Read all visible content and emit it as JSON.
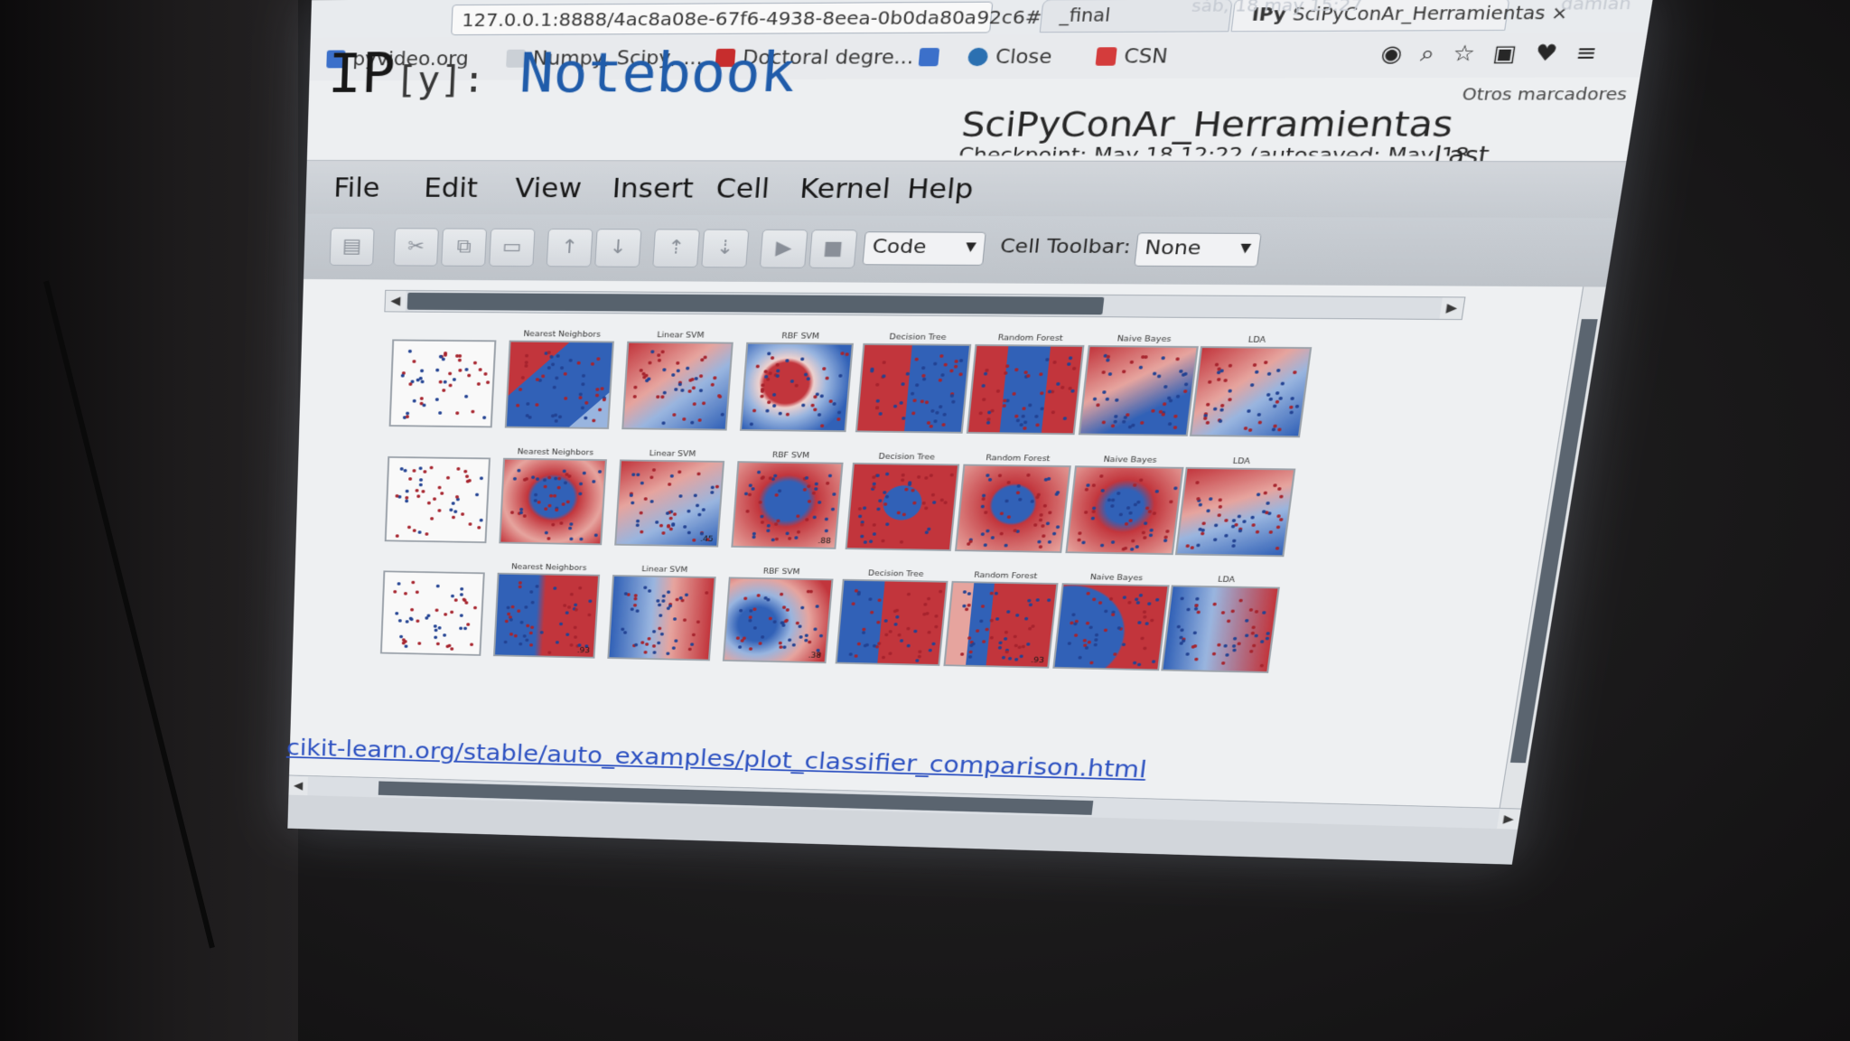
{
  "browser": {
    "tabs": [
      {
        "label": "_final"
      },
      {
        "label": "SciPyConAr_Herramientas",
        "icon": "ipython-icon"
      }
    ],
    "address": "127.0.0.1:8888/4ac8a08e-67f6-4938-8eea-0b0da80a92c6#",
    "clock": "sáb, 18 may 15:27",
    "user": "damian",
    "bookmarks": [
      {
        "label": "pyvideo.org",
        "color": "#3b6fc9"
      },
      {
        "label": "Numpy, Scipy, ...",
        "color": "#9aa2ab"
      },
      {
        "label": "Doctoral degre...",
        "color": "#c52a2a"
      },
      {
        "label": "",
        "color": "#3b6fc9"
      },
      {
        "label": "Close",
        "color": "#2a6fb0"
      },
      {
        "label": "CSN",
        "color": "#d23a3a"
      }
    ],
    "other_bookmarks": "Otros marcadores"
  },
  "notebook": {
    "logo_ip": "IP",
    "logo_y": "[y]:",
    "logo_notebook": "Notebook",
    "name": "SciPyConAr_Herramientas",
    "checkpoint": "Checkpoint: May 18 12:22 (autosaved: May 18",
    "last_label": "Last"
  },
  "menubar": [
    "File",
    "Edit",
    "View",
    "Insert",
    "Cell",
    "Kernel",
    "Help"
  ],
  "toolbar": {
    "buttons": [
      {
        "name": "save-icon",
        "glyph": "▤"
      },
      {
        "name": "cut-icon",
        "glyph": "✂"
      },
      {
        "name": "copy-icon",
        "glyph": "⧉"
      },
      {
        "name": "paste-icon",
        "glyph": "▭"
      },
      {
        "name": "move-up-icon",
        "glyph": "↑"
      },
      {
        "name": "move-down-icon",
        "glyph": "↓"
      },
      {
        "name": "insert-above-icon",
        "glyph": "⇡"
      },
      {
        "name": "insert-below-icon",
        "glyph": "⇣"
      },
      {
        "name": "run-icon",
        "glyph": "▶"
      },
      {
        "name": "stop-icon",
        "glyph": "■"
      }
    ],
    "cell_type": "Code",
    "cell_toolbar_label": "Cell Toolbar:",
    "cell_toolbar_value": "None"
  },
  "figure": {
    "columns": [
      "",
      "Nearest Neighbors",
      "Linear SVM",
      "RBF SVM",
      "Decision Tree",
      "Random Forest",
      "Naive Bayes",
      "LDA"
    ],
    "rows": 3,
    "scores": [
      [
        "",
        "",
        "",
        "",
        "",
        "",
        "",
        ""
      ],
      [
        "",
        "",
        ".45",
        ".88",
        "",
        "",
        "",
        ""
      ],
      [
        "",
        ".93",
        "",
        ".38",
        "",
        ".93",
        "",
        ""
      ]
    ]
  },
  "link": "cikit-learn.org/stable/auto_examples/plot_classifier_comparison.html",
  "colors": {
    "red": "#c0333a",
    "blue": "#2f5fb5",
    "light_red": "#e9a7a1",
    "light_blue": "#9cb8e2"
  }
}
